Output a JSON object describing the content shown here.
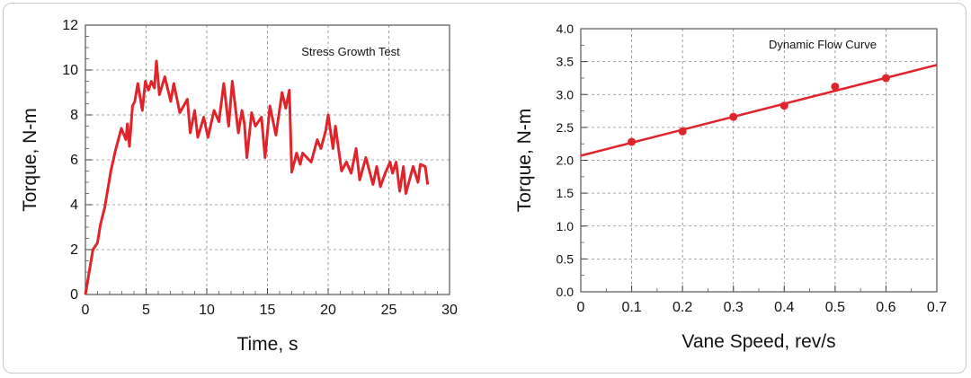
{
  "chart_data": [
    {
      "type": "line",
      "title": "Stress Growth Test",
      "xlabel": "Time, s",
      "ylabel": "Torque, N-m",
      "xlim": [
        0,
        30
      ],
      "ylim": [
        0,
        12
      ],
      "xticks": [
        0,
        5,
        10,
        15,
        20,
        25,
        30
      ],
      "yticks": [
        0,
        2,
        4,
        6,
        8,
        10,
        12
      ],
      "grid": true,
      "color": "#e0242b",
      "x": [
        0,
        0.62,
        0.99,
        1.23,
        1.6,
        2.1,
        2.47,
        2.96,
        3.33,
        3.46,
        3.63,
        3.88,
        4.07,
        4.32,
        4.69,
        4.94,
        5.19,
        5.43,
        5.68,
        5.85,
        6.1,
        6.54,
        7.03,
        7.28,
        7.78,
        8.4,
        8.64,
        9.0,
        9.26,
        9.75,
        10.1,
        10.6,
        11.0,
        11.4,
        11.8,
        12.1,
        12.6,
        12.9,
        13.1,
        13.3,
        13.7,
        14.0,
        14.5,
        14.8,
        15.2,
        15.7,
        16.2,
        16.5,
        16.8,
        17.0,
        17.4,
        17.7,
        17.9,
        18.6,
        19.1,
        19.4,
        19.8,
        20.0,
        20.4,
        20.6,
        21.1,
        21.5,
        21.9,
        22.3,
        22.6,
        23.1,
        23.7,
        24.0,
        24.3,
        24.7,
        25.1,
        25.3,
        25.6,
        25.9,
        26.2,
        26.4,
        26.8,
        27.0,
        27.4,
        27.6,
        28.0,
        28.2
      ],
      "y": [
        0,
        2.0,
        2.3,
        3.1,
        3.9,
        5.5,
        6.4,
        7.4,
        6.9,
        7.6,
        6.6,
        8.4,
        8.6,
        9.4,
        8.2,
        9.5,
        9.1,
        9.5,
        9.2,
        10.4,
        8.9,
        9.7,
        8.6,
        9.4,
        8.1,
        8.7,
        7.2,
        8.2,
        7.0,
        7.9,
        7.0,
        8.2,
        7.7,
        9.4,
        7.5,
        9.5,
        7.2,
        8.2,
        7.6,
        6.1,
        8.1,
        7.5,
        7.9,
        6.1,
        8.4,
        7.1,
        9.0,
        8.3,
        9.1,
        5.45,
        6.3,
        5.8,
        6.3,
        5.9,
        6.9,
        6.5,
        7.3,
        8.0,
        6.5,
        7.5,
        5.5,
        5.9,
        5.4,
        6.5,
        5.1,
        6.1,
        4.9,
        5.7,
        4.8,
        5.4,
        5.9,
        5.4,
        5.9,
        4.6,
        5.7,
        4.5,
        5.3,
        5.7,
        5.0,
        5.8,
        5.7,
        4.9
      ]
    },
    {
      "type": "scatter",
      "title": "Dynamic Flow Curve",
      "xlabel": "Vane Speed, rev/s",
      "ylabel": "Torque, N-m",
      "xlim": [
        0,
        0.7
      ],
      "ylim": [
        0,
        4.0
      ],
      "xticks": [
        "0",
        "0.1",
        "0.2",
        "0.3",
        "0.4",
        "0.5",
        "0.6",
        "0.7"
      ],
      "yticks": [
        "0.0",
        "0.5",
        "1.0",
        "1.5",
        "2.0",
        "2.5",
        "3.0",
        "3.5",
        "4.0"
      ],
      "grid": true,
      "color": "#e0242b",
      "x": [
        0.1,
        0.2,
        0.3,
        0.4,
        0.5,
        0.6
      ],
      "y": [
        2.28,
        2.44,
        2.66,
        2.83,
        3.12,
        3.25
      ],
      "fit_line": {
        "x": [
          0,
          0.7
        ],
        "y": [
          2.07,
          3.45
        ]
      }
    }
  ]
}
